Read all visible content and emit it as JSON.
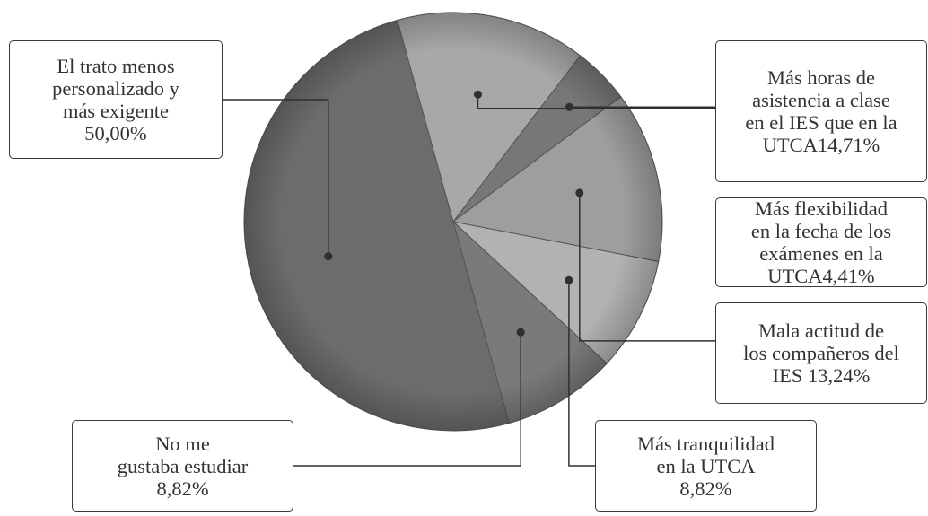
{
  "chart_data": {
    "type": "pie",
    "slices": [
      {
        "label": "El trato menos\npersonalizado y\nmás exigente\n50,00%",
        "value": 50.0,
        "color": "#6c6c6c"
      },
      {
        "label": "Más horas de\nasistencia a clase\nen el IES que en la\nUTCA14,71%",
        "value": 14.71,
        "color": "#a8a8a8"
      },
      {
        "label": "Más flexibilidad\nen la fecha de los\nexámenes en la\nUTCA4,41%",
        "value": 4.41,
        "color": "#777777"
      },
      {
        "label": "Mala actitud de\nlos compañeros del\nIES 13,24%",
        "value": 13.24,
        "color": "#9e9e9e"
      },
      {
        "label": "Más tranquilidad\nen la UTCA\n8,82%",
        "value": 8.82,
        "color": "#b2b2b2"
      },
      {
        "label": "No me\ngustaba estudiar\n8,82%",
        "value": 8.82,
        "color": "#7a7a7a"
      }
    ]
  }
}
